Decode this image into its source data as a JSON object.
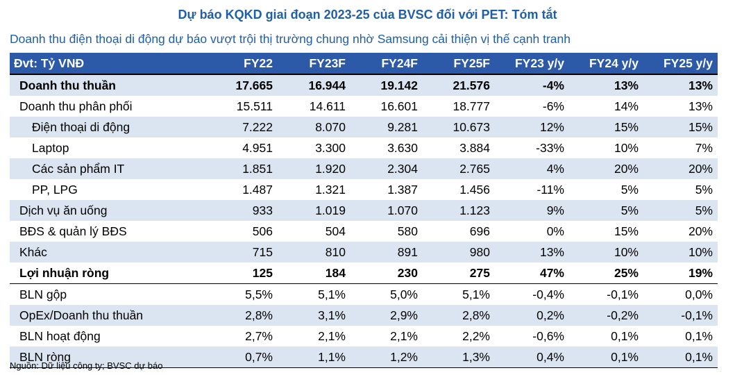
{
  "title": "Dự báo KQKD giai đoạn 2023-25 của BVSC đối với PET: Tóm tắt",
  "subtitle": "Doanh thu điện thoại di động dự báo vượt trội thị trường chung nhờ Samsung cải thiện vị thế cạnh tranh",
  "table": {
    "headers": [
      "Đvt: Tỷ VNĐ",
      "FY22",
      "FY23F",
      "FY24F",
      "FY25F",
      "FY23 y/y",
      "FY24 y/y",
      "FY25 y/y"
    ],
    "rows": [
      {
        "cells": [
          "Doanh thu thuần",
          "17.665",
          "16.944",
          "19.142",
          "21.576",
          "-4%",
          "13%",
          "13%"
        ]
      },
      {
        "cells": [
          "Doanh thu phân phối",
          "15.511",
          "14.611",
          "16.601",
          "18.777",
          "-6%",
          "14%",
          "13%"
        ]
      },
      {
        "cells": [
          "Điện thoại di động",
          "7.222",
          "8.070",
          "9.281",
          "10.673",
          "12%",
          "15%",
          "15%"
        ]
      },
      {
        "cells": [
          "Laptop",
          "4.951",
          "3.300",
          "3.630",
          "3.884",
          "-33%",
          "10%",
          "7%"
        ]
      },
      {
        "cells": [
          "Các sản phẩm IT",
          "1.851",
          "1.920",
          "2.304",
          "2.765",
          "4%",
          "20%",
          "20%"
        ]
      },
      {
        "cells": [
          "PP, LPG",
          "1.487",
          "1.321",
          "1.387",
          "1.456",
          "-11%",
          "5%",
          "5%"
        ]
      },
      {
        "cells": [
          "Dịch vụ ăn uống",
          "933",
          "1.019",
          "1.070",
          "1.123",
          "9%",
          "5%",
          "5%"
        ]
      },
      {
        "cells": [
          "BĐS & quản lý BĐS",
          "506",
          "504",
          "580",
          "696",
          "0%",
          "15%",
          "20%"
        ]
      },
      {
        "cells": [
          "Khác",
          "715",
          "810",
          "891",
          "980",
          "13%",
          "10%",
          "10%"
        ]
      },
      {
        "cells": [
          "Lợi nhuận ròng",
          "125",
          "184",
          "230",
          "275",
          "47%",
          "25%",
          "19%"
        ]
      },
      {
        "cells": [
          "BLN gộp",
          "5,5%",
          "5,1%",
          "5,0%",
          "5,1%",
          "-0,4%",
          "-0,1%",
          "0,0%"
        ]
      },
      {
        "cells": [
          "OpEx/Doanh thu thuần",
          "2,8%",
          "3,1%",
          "2,9%",
          "2,8%",
          "0,2%",
          "-0,2%",
          "-0,1%"
        ]
      },
      {
        "cells": [
          "BLN hoạt động",
          "2,7%",
          "2,1%",
          "2,1%",
          "2,2%",
          "-0,6%",
          "0,1%",
          "0,1%"
        ]
      },
      {
        "cells": [
          "BLN ròng",
          "0,7%",
          "1,1%",
          "1,2%",
          "1,3%",
          "0,4%",
          "0,1%",
          "0,1%"
        ]
      }
    ]
  },
  "source": "Nguồn: Dữ liệu công ty; BVSC dự báo",
  "colors": {
    "header_bg": "#2d5aa8",
    "title": "#1f5fa8",
    "band": "#dbe5f1"
  }
}
